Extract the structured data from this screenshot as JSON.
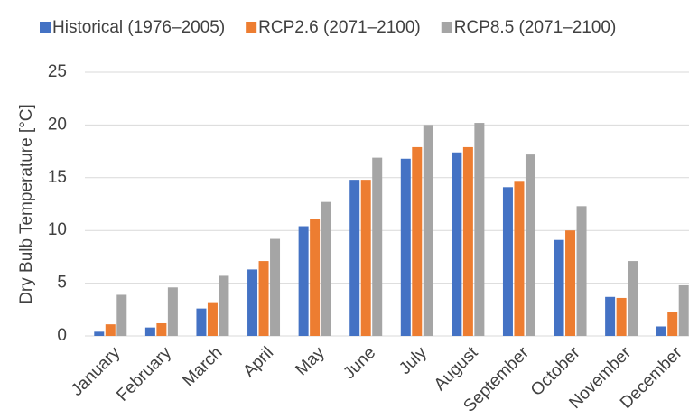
{
  "chart_data": {
    "type": "bar",
    "y_label": "Dry Bulb Temperature [°C]",
    "categories": [
      "January",
      "February",
      "March",
      "April",
      "May",
      "June",
      "July",
      "August",
      "September",
      "October",
      "November",
      "December"
    ],
    "series": [
      {
        "name": "Historical (1976–2005)",
        "color": "#4472c4",
        "values": [
          0.4,
          0.8,
          2.6,
          6.3,
          10.4,
          14.8,
          16.8,
          17.4,
          14.1,
          9.1,
          3.7,
          0.9
        ]
      },
      {
        "name": "RCP2.6 (2071–2100)",
        "color": "#ed7d31",
        "values": [
          1.1,
          1.2,
          3.2,
          7.1,
          11.1,
          14.8,
          17.9,
          17.9,
          14.7,
          10.0,
          3.6,
          2.3
        ]
      },
      {
        "name": "RCP8.5 (2071–2100)",
        "color": "#a5a5a5",
        "values": [
          3.9,
          4.6,
          5.7,
          9.2,
          12.7,
          16.9,
          20.0,
          20.2,
          17.2,
          12.3,
          7.1,
          4.8
        ]
      }
    ],
    "ylim": [
      0,
      25
    ],
    "yticks": [
      0,
      5,
      10,
      15,
      20,
      25
    ],
    "grid": true,
    "legend": "top"
  }
}
